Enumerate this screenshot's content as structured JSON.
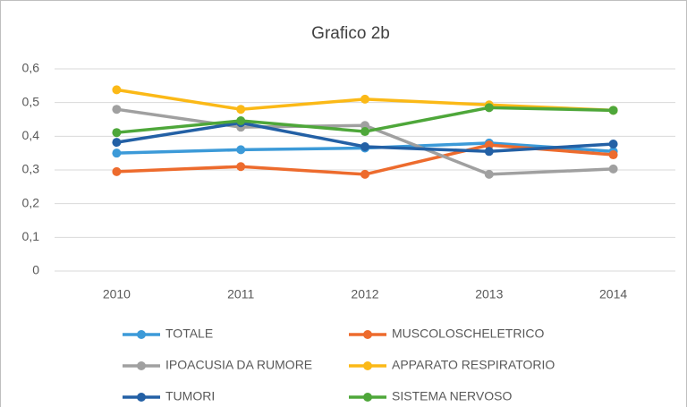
{
  "chart_data": {
    "type": "line",
    "title": "Grafico 2b",
    "categories": [
      "2010",
      "2011",
      "2012",
      "2013",
      "2014"
    ],
    "ylim": [
      0,
      0.6
    ],
    "yticks": [
      {
        "value": 0,
        "label": "0"
      },
      {
        "value": 0.1,
        "label": "0,1"
      },
      {
        "value": 0.2,
        "label": "0,2"
      },
      {
        "value": 0.3,
        "label": "0,3"
      },
      {
        "value": 0.4,
        "label": "0,4"
      },
      {
        "value": 0.5,
        "label": "0,5"
      },
      {
        "value": 0.6,
        "label": "0,6"
      }
    ],
    "grid": true,
    "series": [
      {
        "name": "TOTALE",
        "color": "#3c9ad8",
        "values": [
          0.35,
          0.36,
          0.365,
          0.38,
          0.355
        ]
      },
      {
        "name": "MUSCOLOSCHELETRICO",
        "color": "#ed6b2d",
        "values": [
          0.295,
          0.31,
          0.287,
          0.374,
          0.345
        ]
      },
      {
        "name": "IPOACUSIA DA RUMORE",
        "color": "#a0a0a0",
        "values": [
          0.48,
          0.427,
          0.432,
          0.287,
          0.303
        ]
      },
      {
        "name": "APPARATO RESPIRATORIO",
        "color": "#fbb917",
        "values": [
          0.538,
          0.48,
          0.51,
          0.493,
          0.477
        ]
      },
      {
        "name": "TUMORI",
        "color": "#2360a5",
        "values": [
          0.382,
          0.44,
          0.369,
          0.355,
          0.377
        ]
      },
      {
        "name": "SISTEMA NERVOSO",
        "color": "#4ea73a",
        "values": [
          0.411,
          0.446,
          0.414,
          0.485,
          0.477
        ]
      }
    ]
  }
}
